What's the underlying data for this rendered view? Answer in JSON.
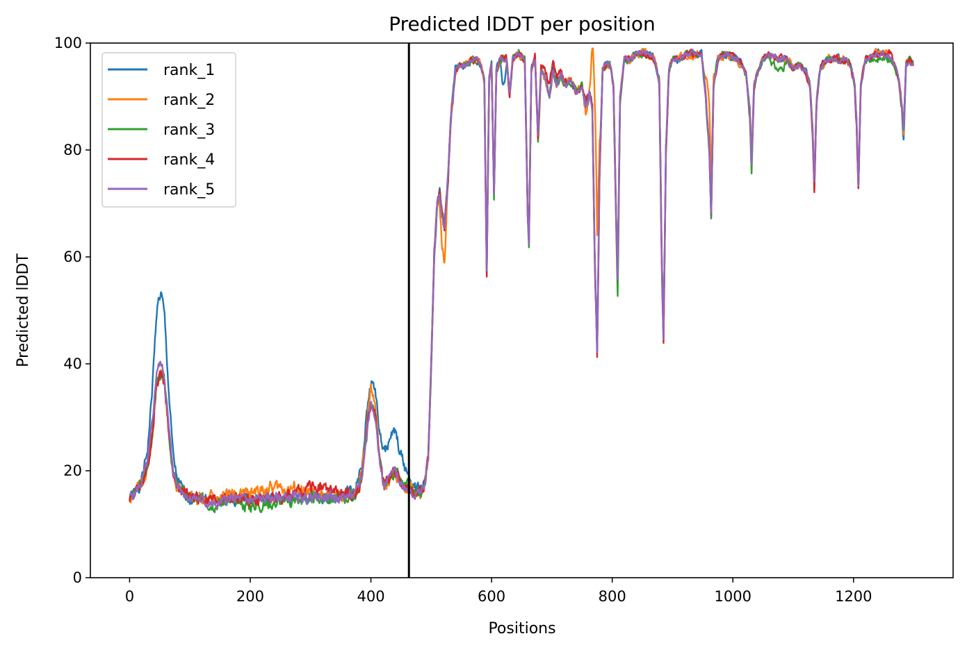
{
  "chart_data": {
    "type": "line",
    "title": "Predicted lDDT per position",
    "xlabel": "Positions",
    "ylabel": "Predicted lDDT",
    "xlim": [
      -65,
      1365
    ],
    "ylim": [
      0,
      100
    ],
    "xticks": [
      0,
      200,
      400,
      600,
      800,
      1000,
      1200
    ],
    "yticks": [
      0,
      20,
      40,
      60,
      80,
      100
    ],
    "grid": false,
    "legend_position": "top-left",
    "vertical_line_x": 463,
    "n_positions": 1300,
    "base_profile": [
      [
        0,
        15
      ],
      [
        10,
        16
      ],
      [
        20,
        18
      ],
      [
        30,
        22
      ],
      [
        38,
        30
      ],
      [
        45,
        40
      ],
      [
        52,
        41
      ],
      [
        58,
        38
      ],
      [
        65,
        28
      ],
      [
        72,
        20
      ],
      [
        80,
        17
      ],
      [
        90,
        16
      ],
      [
        100,
        15
      ],
      [
        120,
        15
      ],
      [
        140,
        14.5
      ],
      [
        160,
        15
      ],
      [
        200,
        14.5
      ],
      [
        250,
        15
      ],
      [
        300,
        15
      ],
      [
        350,
        15
      ],
      [
        375,
        15.5
      ],
      [
        385,
        19
      ],
      [
        393,
        27
      ],
      [
        400,
        33
      ],
      [
        407,
        31
      ],
      [
        414,
        22
      ],
      [
        422,
        17
      ],
      [
        432,
        19
      ],
      [
        440,
        20
      ],
      [
        448,
        18
      ],
      [
        455,
        17
      ],
      [
        462,
        17
      ],
      [
        470,
        16
      ],
      [
        480,
        15.5
      ],
      [
        488,
        17
      ],
      [
        495,
        22
      ],
      [
        500,
        40
      ],
      [
        505,
        60
      ],
      [
        510,
        70
      ],
      [
        514,
        72
      ],
      [
        518,
        68
      ],
      [
        522,
        65
      ],
      [
        528,
        75
      ],
      [
        532,
        85
      ],
      [
        540,
        95
      ],
      [
        550,
        96
      ],
      [
        560,
        96
      ],
      [
        568,
        97
      ],
      [
        575,
        97
      ],
      [
        582,
        96
      ],
      [
        588,
        93
      ],
      [
        592,
        57
      ],
      [
        596,
        93
      ],
      [
        600,
        96
      ],
      [
        604,
        72
      ],
      [
        608,
        95
      ],
      [
        615,
        97
      ],
      [
        625,
        97
      ],
      [
        630,
        90
      ],
      [
        635,
        97
      ],
      [
        645,
        98
      ],
      [
        655,
        97
      ],
      [
        660,
        68
      ],
      [
        662,
        63
      ],
      [
        666,
        95
      ],
      [
        672,
        97
      ],
      [
        677,
        82
      ],
      [
        682,
        95
      ],
      [
        690,
        93
      ],
      [
        696,
        90
      ],
      [
        702,
        95
      ],
      [
        708,
        92
      ],
      [
        715,
        94
      ],
      [
        722,
        92
      ],
      [
        730,
        93
      ],
      [
        740,
        91
      ],
      [
        750,
        92
      ],
      [
        756,
        88
      ],
      [
        762,
        91
      ],
      [
        767,
        88
      ],
      [
        771,
        60
      ],
      [
        775,
        42
      ],
      [
        779,
        75
      ],
      [
        784,
        95
      ],
      [
        790,
        96
      ],
      [
        796,
        96
      ],
      [
        802,
        92
      ],
      [
        806,
        70
      ],
      [
        809,
        55
      ],
      [
        813,
        90
      ],
      [
        820,
        97
      ],
      [
        830,
        97
      ],
      [
        840,
        98
      ],
      [
        850,
        98
      ],
      [
        860,
        98
      ],
      [
        870,
        97
      ],
      [
        878,
        93
      ],
      [
        882,
        60
      ],
      [
        885,
        45
      ],
      [
        889,
        80
      ],
      [
        894,
        95
      ],
      [
        900,
        97
      ],
      [
        910,
        97
      ],
      [
        920,
        98
      ],
      [
        935,
        98
      ],
      [
        948,
        98
      ],
      [
        955,
        90
      ],
      [
        961,
        80
      ],
      [
        964,
        68
      ],
      [
        968,
        92
      ],
      [
        975,
        97
      ],
      [
        990,
        98
      ],
      [
        1005,
        97
      ],
      [
        1015,
        96
      ],
      [
        1022,
        94
      ],
      [
        1028,
        88
      ],
      [
        1031,
        78
      ],
      [
        1035,
        92
      ],
      [
        1042,
        95
      ],
      [
        1050,
        97
      ],
      [
        1060,
        98
      ],
      [
        1075,
        97
      ],
      [
        1090,
        97
      ],
      [
        1100,
        95
      ],
      [
        1110,
        96
      ],
      [
        1120,
        95
      ],
      [
        1128,
        92
      ],
      [
        1132,
        85
      ],
      [
        1135,
        74
      ],
      [
        1139,
        90
      ],
      [
        1145,
        95
      ],
      [
        1155,
        97
      ],
      [
        1170,
        97
      ],
      [
        1185,
        97
      ],
      [
        1195,
        96
      ],
      [
        1202,
        92
      ],
      [
        1205,
        85
      ],
      [
        1208,
        72
      ],
      [
        1212,
        92
      ],
      [
        1220,
        97
      ],
      [
        1235,
        98
      ],
      [
        1250,
        98
      ],
      [
        1262,
        97
      ],
      [
        1270,
        95
      ],
      [
        1275,
        93
      ],
      [
        1280,
        88
      ],
      [
        1283,
        84
      ],
      [
        1287,
        96
      ],
      [
        1293,
        97
      ],
      [
        1299,
        96
      ]
    ],
    "series": [
      {
        "name": "rank_1",
        "color": "#1f77b4",
        "seed": 1,
        "noise": 0.9,
        "bumps": [
          [
            52,
            12,
            12
          ],
          [
            420,
            5,
            30
          ],
          [
            440,
            3,
            12
          ],
          [
            1283,
            -2,
            3
          ],
          [
            620,
            -5,
            3
          ],
          [
            1028,
            -1,
            3
          ]
        ]
      },
      {
        "name": "rank_2",
        "color": "#ff7f0e",
        "seed": 2,
        "noise": 1.0,
        "bumps": [
          [
            45,
            -2,
            12
          ],
          [
            240,
            2,
            40
          ],
          [
            400,
            3,
            8
          ],
          [
            772,
            30,
            4
          ],
          [
            520,
            -6,
            4
          ],
          [
            960,
            8,
            4
          ]
        ]
      },
      {
        "name": "rank_3",
        "color": "#2ca02c",
        "seed": 3,
        "noise": 0.9,
        "bumps": [
          [
            45,
            -3,
            12
          ],
          [
            200,
            -1,
            60
          ],
          [
            1031,
            -3,
            3
          ],
          [
            810,
            -3,
            3
          ],
          [
            1075,
            -2,
            10
          ],
          [
            1240,
            -1,
            12
          ]
        ]
      },
      {
        "name": "rank_4",
        "color": "#d62728",
        "seed": 4,
        "noise": 0.9,
        "bumps": [
          [
            45,
            -3,
            12
          ],
          [
            310,
            2,
            25
          ],
          [
            1135,
            -2,
            3
          ],
          [
            885,
            -2,
            3
          ],
          [
            1262,
            1,
            8
          ],
          [
            700,
            2,
            15
          ]
        ]
      },
      {
        "name": "rank_5",
        "color": "#9467bd",
        "seed": 5,
        "noise": 0.8,
        "bumps": [
          [
            45,
            -1,
            12
          ],
          [
            140,
            -1,
            15
          ],
          [
            1283,
            0,
            5
          ]
        ]
      }
    ]
  }
}
